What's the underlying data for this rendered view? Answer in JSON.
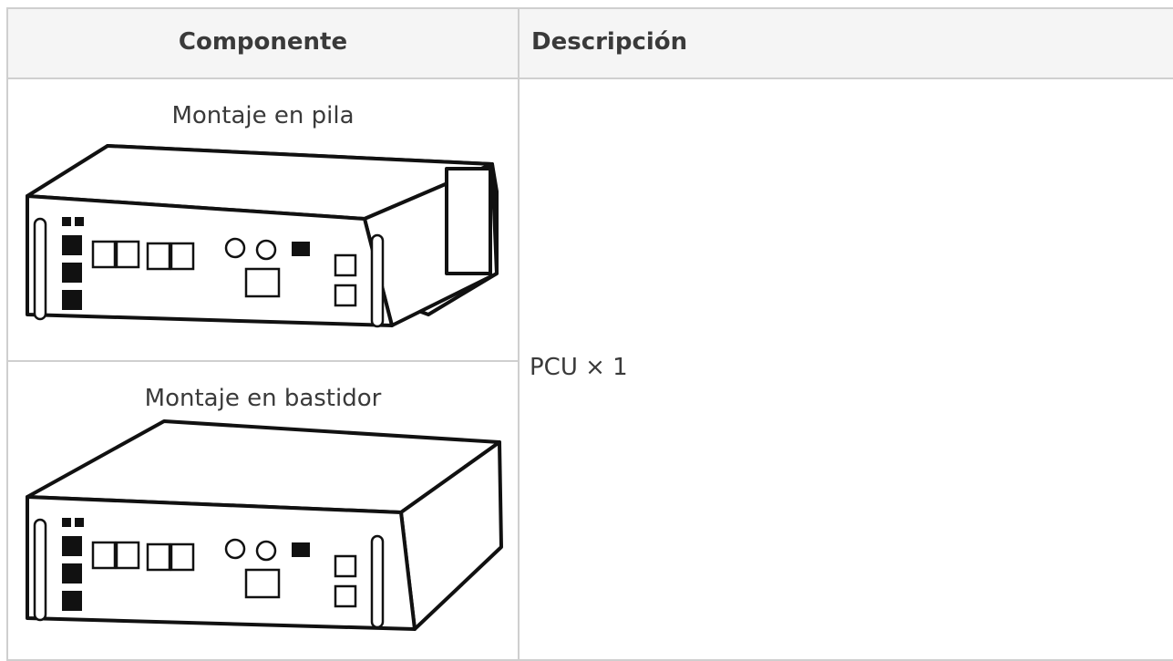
{
  "table": {
    "header": [
      "Componente",
      "Descripción"
    ],
    "components": [
      "Montaje en pila",
      "Montaje en bastidor"
    ],
    "description": "PCU × 1"
  }
}
